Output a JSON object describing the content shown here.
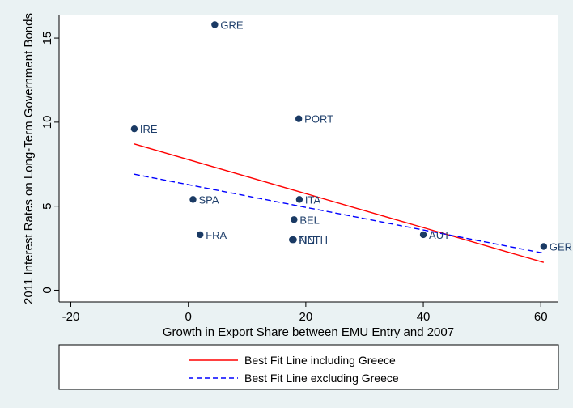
{
  "chart_data": {
    "type": "scatter",
    "xlabel": "Growth in Export Share between EMU Entry and 2007",
    "ylabel": "2011 Interest Rates on Long-Term Government Bonds",
    "xlim": [
      -22,
      63
    ],
    "ylim": [
      -0.7,
      16.4
    ],
    "xticks": [
      -20,
      0,
      20,
      40,
      60
    ],
    "yticks": [
      0,
      5,
      10,
      15
    ],
    "grid": false,
    "legend_placement": "bottom",
    "points": [
      {
        "label": "GRE",
        "x": 4.5,
        "y": 15.8
      },
      {
        "label": "IRE",
        "x": -9.2,
        "y": 9.6
      },
      {
        "label": "PORT",
        "x": 18.8,
        "y": 10.2
      },
      {
        "label": "SPA",
        "x": 0.8,
        "y": 5.4
      },
      {
        "label": "ITA",
        "x": 18.9,
        "y": 5.4
      },
      {
        "label": "BEL",
        "x": 18.0,
        "y": 4.2
      },
      {
        "label": "FRA",
        "x": 2.0,
        "y": 3.3
      },
      {
        "label": "FIN",
        "x": 17.7,
        "y": 3.0
      },
      {
        "label": "NETH",
        "x": 17.9,
        "y": 3.0
      },
      {
        "label": "AUT",
        "x": 40.0,
        "y": 3.3
      },
      {
        "label": "GER",
        "x": 60.5,
        "y": 2.6
      }
    ],
    "series": [
      {
        "name": "Best Fit Line including Greece",
        "x": [
          -9.2,
          60.5
        ],
        "y": [
          8.7,
          1.65
        ],
        "color": "#ff0000",
        "style": "solid"
      },
      {
        "name": "Best Fit Line excluding Greece",
        "x": [
          -9.2,
          60.5
        ],
        "y": [
          6.9,
          2.2
        ],
        "color": "#0000ff",
        "style": "dashed"
      }
    ],
    "colors": {
      "background": "#eaf2f3",
      "plot_area": "#ffffff",
      "marker": "#1a3a64",
      "label": "#1f3f6b"
    }
  }
}
